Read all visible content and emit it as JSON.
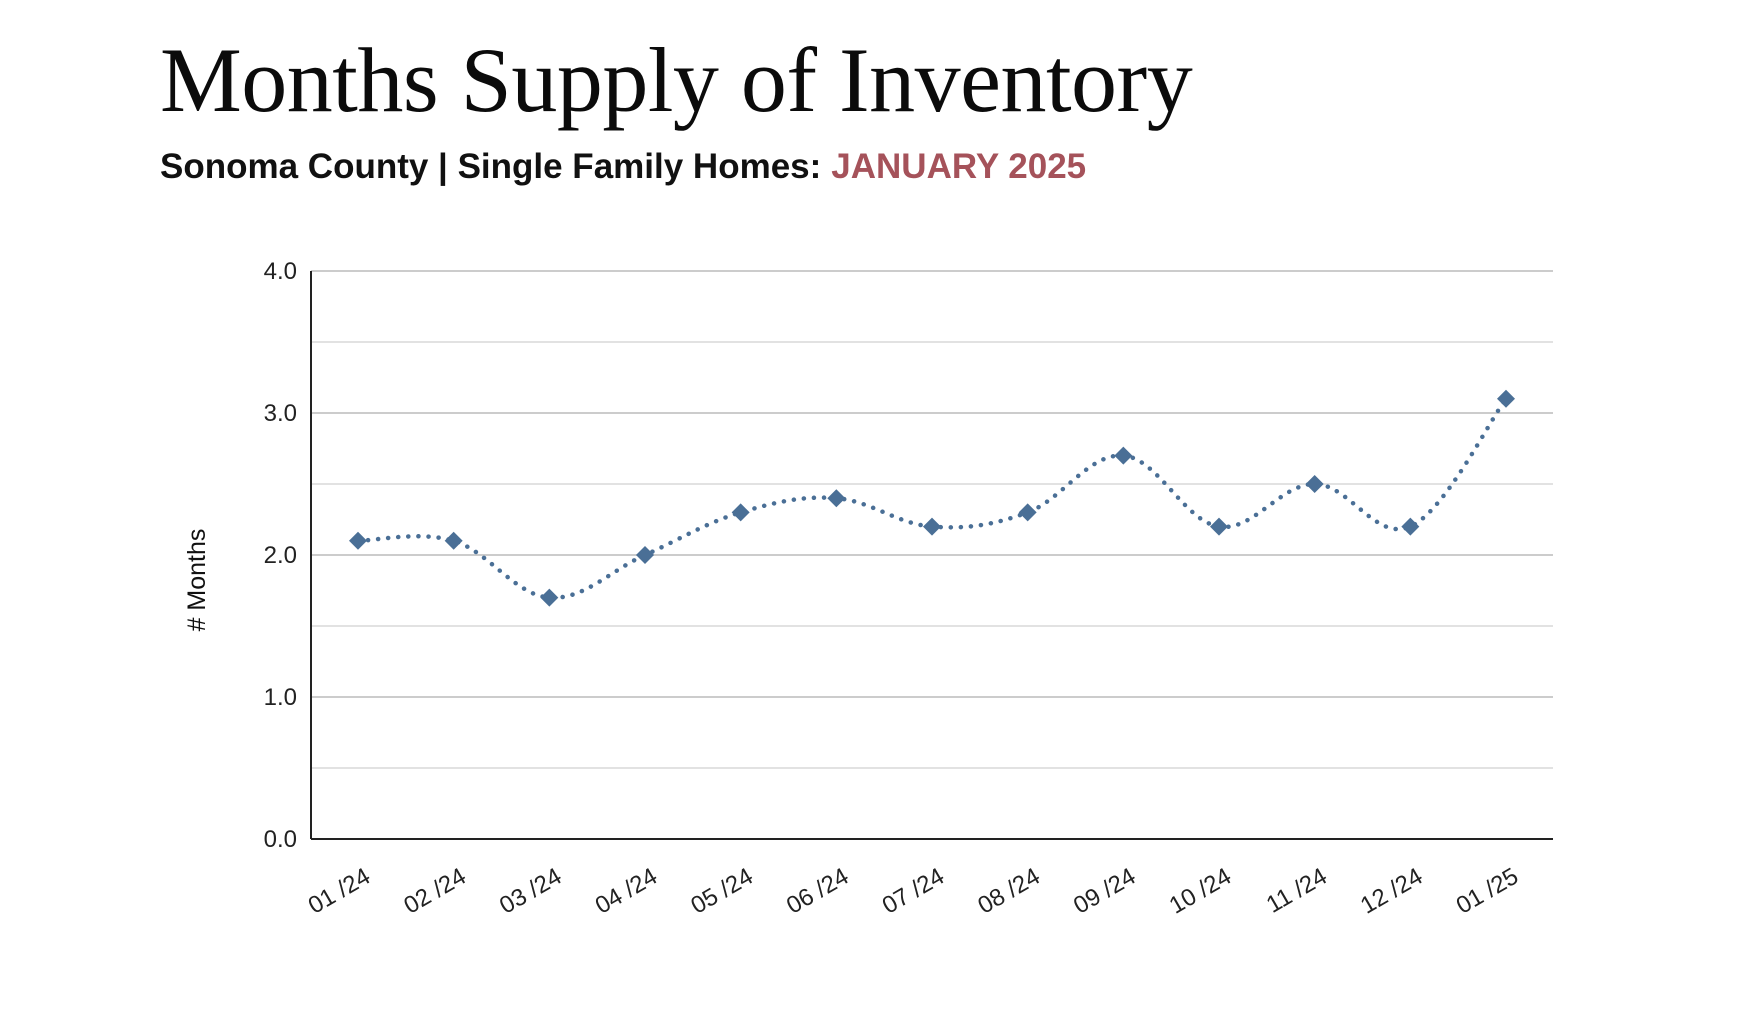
{
  "header": {
    "title": "Months Supply of Inventory",
    "subtitle_main": "Sonoma County | Single Family Homes:",
    "subtitle_highlight": "JANUARY 2025"
  },
  "colors": {
    "title": "#0b0b0b",
    "subtitle": "#111111",
    "highlight": "#a5525a",
    "series": "#4a6f96",
    "gridline": "#cccccc",
    "gridline_minor": "#e2e2e2",
    "axis": "#222222"
  },
  "chart_data": {
    "type": "line",
    "title": "",
    "xlabel": "",
    "ylabel": "# Months",
    "categories": [
      "01 /24",
      "02 /24",
      "03 /24",
      "04 /24",
      "05 /24",
      "06 /24",
      "07 /24",
      "08 /24",
      "09 /24",
      "10 /24",
      "11 /24",
      "12 /24",
      "01 /25"
    ],
    "series": [
      {
        "values": [
          2.1,
          2.1,
          1.7,
          2.0,
          2.3,
          2.4,
          2.2,
          2.3,
          2.7,
          2.2,
          2.5,
          2.2,
          3.1
        ],
        "line_style": "dotted",
        "marker": "diamond"
      }
    ],
    "ylim": [
      0,
      4
    ],
    "y_ticks": [
      0,
      1,
      2,
      3,
      4
    ],
    "y_tick_labels": [
      "0.0",
      "1.0",
      "2.0",
      "3.0",
      "4.0"
    ],
    "grid": true,
    "minor_grid": true,
    "legend": "none"
  }
}
